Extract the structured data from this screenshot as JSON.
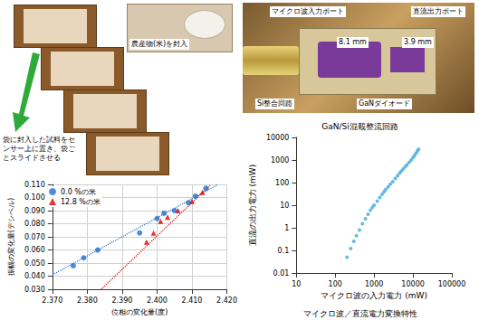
{
  "photos": {
    "rice_label": "農産物(米)を封入",
    "instruction": "袋に封入した試料をセンサー上に置き、袋ごとスライドさせる",
    "device_labels": [
      "マイクロ波入力ポート",
      "直流出力ポート",
      "8.1 mm",
      "3.9 mm",
      "Si整合回路",
      "GaNダイオード"
    ]
  },
  "chart_data": [
    {
      "type": "scatter",
      "xlabel": "位相の変化量(度)",
      "ylabel": "振幅の変化量(デシベル)",
      "xlim": [
        2.37,
        2.42
      ],
      "ylim": [
        0.03,
        0.11
      ],
      "xticks": [
        {
          "value": 2.37,
          "label": "2.370"
        },
        {
          "value": 2.38,
          "label": "2.380"
        },
        {
          "value": 2.39,
          "label": "2.390"
        },
        {
          "value": 2.4,
          "label": "2.400"
        },
        {
          "value": 2.41,
          "label": "2.410"
        },
        {
          "value": 2.42,
          "label": "2.420"
        }
      ],
      "yticks": [
        {
          "value": 0.03,
          "label": "0.030"
        },
        {
          "value": 0.04,
          "label": "0.040"
        },
        {
          "value": 0.05,
          "label": "0.050"
        },
        {
          "value": 0.06,
          "label": "0.060"
        },
        {
          "value": 0.07,
          "label": "0.070"
        },
        {
          "value": 0.08,
          "label": "0.080"
        },
        {
          "value": 0.09,
          "label": "0.090"
        },
        {
          "value": 0.1,
          "label": "0.100"
        },
        {
          "value": 0.11,
          "label": "0.110"
        }
      ],
      "grid": true,
      "legend": "upper left",
      "series": [
        {
          "name": "0.0 %の米",
          "color": "#1f6fd0",
          "marker": "circle",
          "x": [
            2.376,
            2.379,
            2.383,
            2.395,
            2.4,
            2.402,
            2.405,
            2.409,
            2.411,
            2.414
          ],
          "values": [
            0.048,
            0.054,
            0.06,
            0.073,
            0.084,
            0.088,
            0.09,
            0.096,
            0.101,
            0.107
          ],
          "trend": {
            "x": [
              2.37,
              2.4175
            ],
            "values": [
              0.041,
              0.11
            ],
            "line_style": "dotted"
          }
        },
        {
          "name": "12.8 %の米",
          "color": "#e00000",
          "marker": "triangle",
          "x": [
            2.397,
            2.399,
            2.401,
            2.403,
            2.406,
            2.41,
            2.413
          ],
          "values": [
            0.066,
            0.073,
            0.082,
            0.085,
            0.09,
            0.097,
            0.104
          ],
          "trend": {
            "x": [
              2.384,
              2.4155
            ],
            "values": [
              0.03,
              0.11
            ],
            "line_style": "dotted"
          }
        }
      ]
    },
    {
      "type": "scatter",
      "title": "GaN/Si混載整流回路",
      "xlabel": "マイクロ波の入力電力 (mW)",
      "ylabel": "直流の出力電力 (mW)",
      "annotations": [
        "マイクロ波／直流電力変換特性"
      ],
      "log": true,
      "grid": false,
      "xlim": [
        10,
        100000
      ],
      "ylim": [
        0.01,
        10000
      ],
      "xticks": [
        10,
        100,
        1000,
        10000,
        100000
      ],
      "yticks": [
        0.01,
        0.1,
        1,
        10,
        100,
        1000,
        10000
      ],
      "color": "#3fa9dc",
      "marker": "circle",
      "x": [
        200,
        250,
        300,
        350,
        420,
        500,
        600,
        700,
        800,
        900,
        1000,
        1200,
        1400,
        1600,
        1800,
        2000,
        2300,
        2600,
        3000,
        3500,
        4000,
        4500,
        5000,
        5600,
        6300,
        7000,
        8000,
        9000,
        10000,
        11000,
        12000,
        13000,
        14000
      ],
      "values": [
        0.05,
        0.12,
        0.25,
        0.45,
        0.8,
        1.5,
        2.5,
        4,
        6,
        8,
        10,
        15,
        22,
        30,
        40,
        50,
        65,
        85,
        110,
        150,
        200,
        260,
        320,
        400,
        500,
        620,
        800,
        1000,
        1300,
        1600,
        2000,
        2500,
        3000
      ]
    }
  ]
}
